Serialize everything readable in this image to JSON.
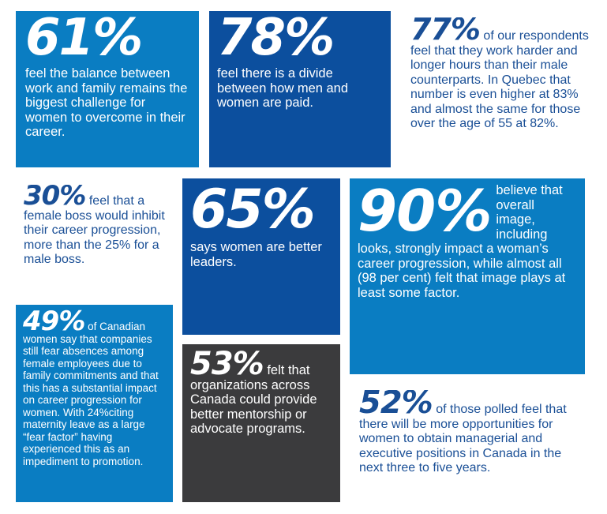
{
  "colors": {
    "blue_light": "#0a7dc2",
    "blue_dark": "#0c4f9e",
    "gray_dark": "#3b3b3d",
    "text_blue": "#1a4f96",
    "white": "#ffffff"
  },
  "stats": {
    "s61": {
      "pct": "61%",
      "text": "feel the balance between work and family remains the biggest challenge for women to overcome in their career."
    },
    "s78": {
      "pct": "78%",
      "text": "feel there is a divide between how men and women are paid."
    },
    "s77": {
      "pct": "77%",
      "text": "of our respondents feel that they work harder and longer hours than their male counterparts. In Quebec that number is even higher at 83% and almost the same for those over the age of 55 at 82%."
    },
    "s30": {
      "pct": "30%",
      "text": "feel that a female boss would inhibit their career progression, more than the 25% for a male boss."
    },
    "s65": {
      "pct": "65%",
      "text": "says women are better leaders."
    },
    "s90": {
      "pct": "90%",
      "text": "believe that overall image, including looks, strongly impact a woman’s career progression, while almost all (98 per cent) felt that image plays at least some factor."
    },
    "s49": {
      "pct": "49%",
      "text": "of Canadian women say that companies still fear absences among female employees due to family commitments and that this has a substantial impact on career progression for women. With 24%citing maternity leave as a large “fear factor” having experienced this as an impediment to promotion."
    },
    "s53": {
      "pct": "53%",
      "text": "felt that organizations across Canada could provide better mentorship or advocate programs."
    },
    "s52": {
      "pct": "52%",
      "text": "of those polled feel that there will be more opportunities for women to obtain managerial and executive positions in Canada in the next three to five years."
    }
  }
}
